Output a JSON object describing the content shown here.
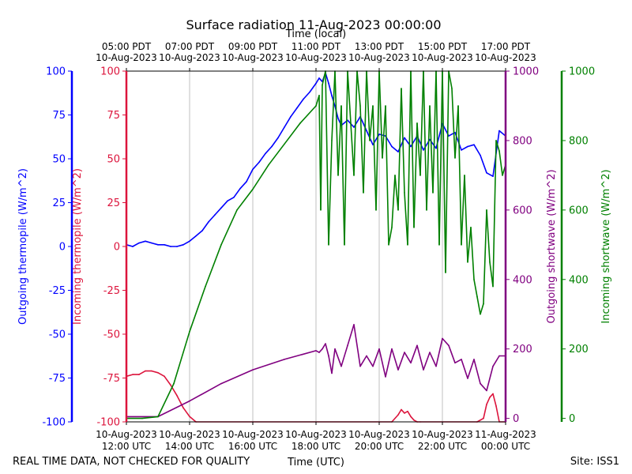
{
  "chart_data": {
    "type": "line",
    "title": "Surface radiation 11-Aug-2023 00:00:00",
    "top_axis_label": "Time (local)",
    "bottom_axis_label": "Time (UTC)",
    "footer_left": "REAL TIME DATA, NOT CHECKED FOR QUALITY",
    "footer_right": "Site: ISS1",
    "x_range_hours_utc": [
      12,
      24
    ],
    "bottom_ticks": [
      {
        "h": 12,
        "l1": "10-Aug-2023",
        "l2": "12:00 UTC"
      },
      {
        "h": 14,
        "l1": "10-Aug-2023",
        "l2": "14:00 UTC"
      },
      {
        "h": 16,
        "l1": "10-Aug-2023",
        "l2": "16:00 UTC"
      },
      {
        "h": 18,
        "l1": "10-Aug-2023",
        "l2": "18:00 UTC"
      },
      {
        "h": 20,
        "l1": "10-Aug-2023",
        "l2": "20:00 UTC"
      },
      {
        "h": 22,
        "l1": "10-Aug-2023",
        "l2": "22:00 UTC"
      },
      {
        "h": 24,
        "l1": "11-Aug-2023",
        "l2": "00:00 UTC"
      }
    ],
    "top_ticks": [
      {
        "h": 12,
        "l1": "05:00 PDT",
        "l2": "10-Aug-2023"
      },
      {
        "h": 14,
        "l1": "07:00 PDT",
        "l2": "10-Aug-2023"
      },
      {
        "h": 16,
        "l1": "09:00 PDT",
        "l2": "10-Aug-2023"
      },
      {
        "h": 18,
        "l1": "11:00 PDT",
        "l2": "10-Aug-2023"
      },
      {
        "h": 20,
        "l1": "13:00 PDT",
        "l2": "10-Aug-2023"
      },
      {
        "h": 22,
        "l1": "15:00 PDT",
        "l2": "10-Aug-2023"
      },
      {
        "h": 24,
        "l1": "17:00 PDT",
        "l2": "10-Aug-2023"
      }
    ],
    "axes": [
      {
        "id": "out_thermo",
        "label": "Outgoing thermopile (W/m^2)",
        "color": "#0000ff",
        "ylim": [
          -100,
          100
        ],
        "ticks": [
          -100,
          -75,
          -50,
          -25,
          0,
          25,
          50,
          75,
          100
        ]
      },
      {
        "id": "in_thermo",
        "label": "Incoming thermopile (W/m^2)",
        "color": "#dc143c",
        "ylim": [
          -100,
          100
        ],
        "ticks": [
          -100,
          -75,
          -50,
          -25,
          0,
          25,
          50,
          75,
          100
        ]
      },
      {
        "id": "out_sw",
        "label": "Outgoing shortwave (W/m^2)",
        "color": "#800080",
        "ylim": [
          -10,
          1000
        ],
        "ticks": [
          0,
          200,
          400,
          600,
          800,
          1000
        ]
      },
      {
        "id": "in_sw",
        "label": "Incoming shortwave (W/m^2)",
        "color": "#008000",
        "ylim": [
          -10,
          1000
        ],
        "ticks": [
          0,
          200,
          400,
          600,
          800,
          1000
        ]
      }
    ],
    "series": [
      {
        "name": "Outgoing thermopile",
        "axis": "out_thermo",
        "color": "#0000ff",
        "x": [
          12.0,
          12.2,
          12.4,
          12.6,
          12.8,
          13.0,
          13.2,
          13.4,
          13.6,
          13.8,
          14.0,
          14.2,
          14.4,
          14.6,
          14.8,
          15.0,
          15.2,
          15.4,
          15.6,
          15.8,
          16.0,
          16.2,
          16.4,
          16.6,
          16.8,
          17.0,
          17.2,
          17.4,
          17.6,
          17.8,
          18.0,
          18.1,
          18.2,
          18.3,
          18.4,
          18.5,
          18.6,
          18.7,
          18.8,
          19.0,
          19.2,
          19.4,
          19.6,
          19.8,
          20.0,
          20.2,
          20.4,
          20.6,
          20.8,
          21.0,
          21.2,
          21.4,
          21.6,
          21.8,
          22.0,
          22.2,
          22.4,
          22.6,
          22.8,
          23.0,
          23.2,
          23.4,
          23.6,
          23.8,
          24.0
        ],
        "y": [
          1,
          0,
          2,
          3,
          2,
          1,
          1,
          0,
          0,
          1,
          3,
          6,
          9,
          14,
          18,
          22,
          26,
          28,
          33,
          37,
          44,
          48,
          53,
          57,
          62,
          68,
          74,
          79,
          84,
          88,
          93,
          96,
          94,
          99,
          93,
          86,
          80,
          73,
          69,
          72,
          68,
          74,
          66,
          58,
          64,
          63,
          57,
          54,
          62,
          57,
          63,
          55,
          61,
          56,
          70,
          63,
          65,
          55,
          57,
          58,
          52,
          42,
          40,
          66,
          63
        ]
      },
      {
        "name": "Incoming thermopile",
        "axis": "in_thermo",
        "color": "#dc143c",
        "x": [
          12.0,
          12.2,
          12.4,
          12.6,
          12.8,
          13.0,
          13.2,
          13.4,
          13.6,
          13.8,
          14.0,
          14.2,
          20.4,
          20.6,
          20.7,
          20.8,
          20.9,
          21.0,
          21.1,
          21.2,
          21.3,
          23.1,
          23.3,
          23.4,
          23.5,
          23.6,
          23.7,
          23.8,
          24.0
        ],
        "y": [
          -74,
          -73,
          -73,
          -71,
          -71,
          -72,
          -74,
          -79,
          -85,
          -92,
          -97,
          -101,
          -100,
          -96,
          -93,
          -95,
          -94,
          -97,
          -99,
          -100,
          -100,
          -100,
          -98,
          -90,
          -86,
          -84,
          -91,
          -100,
          -100
        ]
      },
      {
        "name": "Outgoing shortwave",
        "axis": "out_sw",
        "color": "#800080",
        "x": [
          12.0,
          13.0,
          14.0,
          15.0,
          16.0,
          17.0,
          18.0,
          18.1,
          18.2,
          18.3,
          18.4,
          18.5,
          18.6,
          18.8,
          19.0,
          19.2,
          19.4,
          19.6,
          19.8,
          20.0,
          20.2,
          20.4,
          20.6,
          20.8,
          21.0,
          21.2,
          21.4,
          21.6,
          21.8,
          22.0,
          22.2,
          22.4,
          22.6,
          22.8,
          23.0,
          23.2,
          23.4,
          23.6,
          23.8,
          24.0
        ],
        "y": [
          5,
          5,
          50,
          100,
          140,
          170,
          195,
          190,
          200,
          215,
          180,
          130,
          200,
          150,
          210,
          270,
          150,
          180,
          150,
          200,
          120,
          200,
          140,
          190,
          160,
          210,
          140,
          190,
          150,
          230,
          210,
          160,
          170,
          115,
          170,
          100,
          80,
          150,
          180,
          180
        ]
      },
      {
        "name": "Incoming shortwave",
        "axis": "in_sw",
        "color": "#008000",
        "x": [
          12.0,
          12.5,
          13.0,
          13.5,
          14.0,
          14.5,
          15.0,
          15.5,
          16.0,
          16.5,
          17.0,
          17.5,
          18.0,
          18.1,
          18.15,
          18.2,
          18.3,
          18.4,
          18.5,
          18.6,
          18.7,
          18.8,
          18.9,
          19.0,
          19.1,
          19.2,
          19.3,
          19.4,
          19.5,
          19.6,
          19.7,
          19.8,
          19.9,
          20.0,
          20.1,
          20.2,
          20.3,
          20.4,
          20.5,
          20.6,
          20.7,
          20.8,
          20.9,
          21.0,
          21.1,
          21.2,
          21.3,
          21.4,
          21.5,
          21.6,
          21.7,
          21.8,
          21.9,
          22.0,
          22.1,
          22.2,
          22.3,
          22.4,
          22.5,
          22.6,
          22.7,
          22.8,
          22.9,
          23.0,
          23.1,
          23.2,
          23.3,
          23.4,
          23.5,
          23.6,
          23.7,
          23.8,
          23.9,
          24.0
        ],
        "y": [
          0,
          0,
          5,
          100,
          250,
          380,
          500,
          600,
          660,
          730,
          790,
          850,
          900,
          930,
          600,
          960,
          1000,
          500,
          800,
          1000,
          700,
          900,
          500,
          1000,
          850,
          700,
          1000,
          900,
          650,
          1000,
          800,
          900,
          600,
          1000,
          750,
          900,
          500,
          550,
          700,
          600,
          950,
          650,
          500,
          1000,
          550,
          850,
          700,
          1000,
          600,
          900,
          650,
          1000,
          500,
          1000,
          420,
          1000,
          950,
          750,
          900,
          500,
          700,
          450,
          550,
          400,
          350,
          300,
          330,
          600,
          450,
          380,
          800,
          770,
          700,
          730
        ]
      }
    ]
  }
}
